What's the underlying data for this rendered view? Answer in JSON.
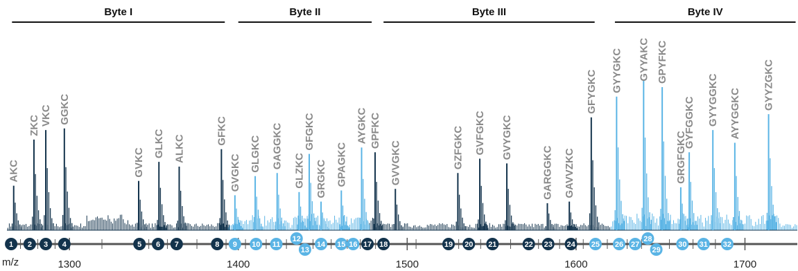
{
  "chart_data": {
    "type": "bar",
    "title": "",
    "xlabel": "m/z",
    "ylabel": "",
    "xlim": [
      1263,
      1731
    ],
    "ylim": [
      0,
      1
    ],
    "x_ticks": [
      1300,
      1400,
      1500,
      1600,
      1700
    ],
    "grid": false,
    "colors": {
      "dark": "#13334c",
      "light": "#5ab4e5",
      "label": "#8a8a8a",
      "axis": "#555555"
    },
    "bytes": [
      {
        "label": "Byte I",
        "range": [
          1266,
          1392
        ]
      },
      {
        "label": "Byte II",
        "range": [
          1400,
          1479
        ]
      },
      {
        "label": "Byte III",
        "range": [
          1486,
          1611
        ]
      },
      {
        "label": "Byte IV",
        "range": [
          1623,
          1730
        ]
      }
    ],
    "peaks": [
      {
        "label": "AKC",
        "mz": 1267.0,
        "intensity": 0.28,
        "color": "dark"
      },
      {
        "label": "ZKC",
        "mz": 1279.0,
        "intensity": 0.57,
        "color": "dark"
      },
      {
        "label": "VKC",
        "mz": 1286.0,
        "intensity": 0.63,
        "color": "dark"
      },
      {
        "label": "GGKC",
        "mz": 1297.0,
        "intensity": 0.64,
        "color": "dark"
      },
      {
        "label": "GVKC",
        "mz": 1341.0,
        "intensity": 0.31,
        "color": "dark"
      },
      {
        "label": "GLKC",
        "mz": 1353.0,
        "intensity": 0.43,
        "color": "dark"
      },
      {
        "label": "ALKC",
        "mz": 1365.0,
        "intensity": 0.4,
        "color": "dark"
      },
      {
        "label": "GFKC",
        "mz": 1390.0,
        "intensity": 0.51,
        "color": "dark"
      },
      {
        "label": "GVGKC",
        "mz": 1398.0,
        "intensity": 0.22,
        "color": "light"
      },
      {
        "label": "GLGKC",
        "mz": 1410.0,
        "intensity": 0.34,
        "color": "light"
      },
      {
        "label": "GAGGKC",
        "mz": 1423.0,
        "intensity": 0.36,
        "color": "light"
      },
      {
        "label": "GLZKC",
        "mz": 1436.0,
        "intensity": 0.24,
        "color": "light"
      },
      {
        "label": "GFGKC",
        "mz": 1442.0,
        "intensity": 0.48,
        "color": "light"
      },
      {
        "label": "GRGKC",
        "mz": 1449.0,
        "intensity": 0.18,
        "color": "light"
      },
      {
        "label": "GPAGKC",
        "mz": 1461.0,
        "intensity": 0.25,
        "color": "light"
      },
      {
        "label": "AYGKC",
        "mz": 1473.0,
        "intensity": 0.52,
        "color": "light"
      },
      {
        "label": "GPFKC",
        "mz": 1481.0,
        "intensity": 0.49,
        "color": "dark"
      },
      {
        "label": "GVVGKC",
        "mz": 1493.0,
        "intensity": 0.26,
        "color": "dark"
      },
      {
        "label": "GZFGKC",
        "mz": 1530.0,
        "intensity": 0.36,
        "color": "dark"
      },
      {
        "label": "GVFGKC",
        "mz": 1543.0,
        "intensity": 0.45,
        "color": "dark"
      },
      {
        "label": "GVYGKC",
        "mz": 1559.0,
        "intensity": 0.42,
        "color": "dark"
      },
      {
        "label": "GARGGKC",
        "mz": 1583.0,
        "intensity": 0.17,
        "color": "dark"
      },
      {
        "label": "GAVVZKC",
        "mz": 1596.0,
        "intensity": 0.18,
        "color": "dark"
      },
      {
        "label": "GFYGKC",
        "mz": 1609.0,
        "intensity": 0.71,
        "color": "dark"
      },
      {
        "label": "GYYGKC",
        "mz": 1624.0,
        "intensity": 0.84,
        "color": "light"
      },
      {
        "label": "GYYAKC",
        "mz": 1640.0,
        "intensity": 0.94,
        "color": "light"
      },
      {
        "label": "GPYFKC",
        "mz": 1651.0,
        "intensity": 0.9,
        "color": "light"
      },
      {
        "label": "GRGFGKC",
        "mz": 1662.0,
        "intensity": 0.27,
        "color": "light"
      },
      {
        "label": "GYFGGKC",
        "mz": 1667.0,
        "intensity": 0.49,
        "color": "light"
      },
      {
        "label": "GYYGGKC",
        "mz": 1681.0,
        "intensity": 0.63,
        "color": "light"
      },
      {
        "label": "AYYGGKC",
        "mz": 1694.0,
        "intensity": 0.55,
        "color": "light"
      },
      {
        "label": "GYYZGKC",
        "mz": 1714.0,
        "intensity": 0.73,
        "color": "light"
      }
    ],
    "markers": [
      {
        "num": "1",
        "mz": 1265.5,
        "color": "dark",
        "offset": 0
      },
      {
        "num": "2",
        "mz": 1276.5,
        "color": "dark",
        "offset": 0
      },
      {
        "num": "3",
        "mz": 1286.0,
        "color": "dark",
        "offset": 0
      },
      {
        "num": "4",
        "mz": 1297.0,
        "color": "dark",
        "offset": 0
      },
      {
        "num": "5",
        "mz": 1341.5,
        "color": "dark",
        "offset": 0
      },
      {
        "num": "6",
        "mz": 1352.5,
        "color": "dark",
        "offset": 0
      },
      {
        "num": "7",
        "mz": 1363.5,
        "color": "dark",
        "offset": 0
      },
      {
        "num": "8",
        "mz": 1387.5,
        "color": "dark",
        "offset": 0
      },
      {
        "num": "9",
        "mz": 1398.0,
        "color": "light",
        "offset": 0
      },
      {
        "num": "10",
        "mz": 1410.5,
        "color": "light",
        "offset": 0
      },
      {
        "num": "11",
        "mz": 1422.5,
        "color": "light",
        "offset": 0
      },
      {
        "num": "12",
        "mz": 1434.5,
        "color": "light",
        "offset": -1
      },
      {
        "num": "13",
        "mz": 1439.5,
        "color": "light",
        "offset": 1
      },
      {
        "num": "14",
        "mz": 1449.0,
        "color": "light",
        "offset": 0
      },
      {
        "num": "15",
        "mz": 1461.0,
        "color": "light",
        "offset": 0
      },
      {
        "num": "16",
        "mz": 1468.0,
        "color": "light",
        "offset": 0
      },
      {
        "num": "17",
        "mz": 1476.5,
        "color": "dark",
        "offset": 0
      },
      {
        "num": "18",
        "mz": 1486.0,
        "color": "dark",
        "offset": 0
      },
      {
        "num": "19",
        "mz": 1524.5,
        "color": "dark",
        "offset": 0
      },
      {
        "num": "20",
        "mz": 1536.5,
        "color": "dark",
        "offset": 0
      },
      {
        "num": "21",
        "mz": 1550.5,
        "color": "dark",
        "offset": 0
      },
      {
        "num": "22",
        "mz": 1572.0,
        "color": "dark",
        "offset": 0
      },
      {
        "num": "23",
        "mz": 1583.5,
        "color": "dark",
        "offset": 0
      },
      {
        "num": "24",
        "mz": 1597.0,
        "color": "dark",
        "offset": 0
      },
      {
        "num": "25",
        "mz": 1611.5,
        "color": "light",
        "offset": 0
      },
      {
        "num": "26",
        "mz": 1625.5,
        "color": "light",
        "offset": 0
      },
      {
        "num": "27",
        "mz": 1635.0,
        "color": "light",
        "offset": 0
      },
      {
        "num": "28",
        "mz": 1642.5,
        "color": "light",
        "offset": -1
      },
      {
        "num": "29",
        "mz": 1647.5,
        "color": "light",
        "offset": 1
      },
      {
        "num": "30",
        "mz": 1663.0,
        "color": "light",
        "offset": 0
      },
      {
        "num": "31",
        "mz": 1675.5,
        "color": "light",
        "offset": 0
      },
      {
        "num": "32",
        "mz": 1689.5,
        "color": "light",
        "offset": 0
      }
    ]
  }
}
